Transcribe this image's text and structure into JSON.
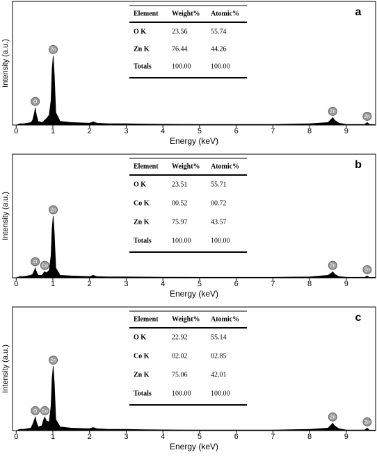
{
  "chart_data": [
    {
      "type": "spectrum",
      "title": "a",
      "x_label": "Energy (keV)",
      "y_label": "Intensity (a.u.)",
      "color": "#000000",
      "xlim": [
        -0.1,
        9.8
      ],
      "xticks": [
        0,
        1,
        2,
        3,
        4,
        5,
        6,
        7,
        8,
        9
      ],
      "ylim": [
        0,
        100
      ],
      "x": [
        0,
        0.1,
        0.2,
        0.3,
        0.4,
        0.45,
        0.5,
        0.52,
        0.55,
        0.6,
        0.7,
        0.75,
        0.78,
        0.82,
        0.9,
        0.95,
        0.98,
        1.01,
        1.04,
        1.08,
        1.2,
        1.5,
        2.0,
        2.1,
        2.2,
        2.5,
        3,
        3.5,
        4,
        5,
        6,
        7,
        8,
        8.5,
        8.6,
        8.63,
        8.68,
        8.8,
        9,
        9.5,
        9.57,
        9.63,
        9.8
      ],
      "values": [
        0,
        1,
        1,
        1.5,
        2,
        4,
        10,
        14,
        8,
        3,
        2,
        3,
        4,
        5,
        8,
        20,
        45,
        56,
        40,
        10,
        3,
        2,
        1.5,
        2.5,
        1.5,
        1,
        1,
        0.8,
        0.6,
        0.5,
        0.5,
        0.5,
        1,
        2,
        5,
        6,
        4,
        1.5,
        0.5,
        0.5,
        2,
        0.5,
        0.3
      ],
      "peak_labels": [
        {
          "text": "O",
          "energy": 0.52
        },
        {
          "text": "Zn",
          "energy": 1.01
        },
        {
          "text": "Zn",
          "energy": 8.63
        },
        {
          "text": "Zn",
          "energy": 9.57
        }
      ],
      "table": {
        "header": [
          "Element",
          "Weight%",
          "Atomic%"
        ],
        "rows": [
          [
            "O K",
            "23.56",
            "55.74"
          ],
          [
            "Zn K",
            "76.44",
            "44.26"
          ],
          [
            "Totals",
            "100.00",
            "100.00"
          ]
        ]
      }
    },
    {
      "type": "spectrum",
      "title": "b",
      "x_label": "Energy (keV)",
      "y_label": "Intensity (a.u.)",
      "color": "#000000",
      "xlim": [
        -0.1,
        9.8
      ],
      "xticks": [
        0,
        1,
        2,
        3,
        4,
        5,
        6,
        7,
        8,
        9
      ],
      "ylim": [
        0,
        100
      ],
      "x": [
        0,
        0.1,
        0.2,
        0.3,
        0.4,
        0.45,
        0.5,
        0.52,
        0.55,
        0.6,
        0.7,
        0.75,
        0.78,
        0.82,
        0.9,
        0.95,
        0.98,
        1.01,
        1.04,
        1.08,
        1.2,
        1.5,
        2.0,
        2.1,
        2.2,
        2.5,
        3,
        3.5,
        4,
        5,
        6,
        7,
        8,
        8.5,
        8.6,
        8.63,
        8.68,
        8.8,
        9,
        9.5,
        9.57,
        9.63,
        9.8
      ],
      "values": [
        0,
        1,
        1,
        1.5,
        2,
        3,
        6,
        8,
        5,
        2,
        2,
        4,
        5,
        4,
        6,
        18,
        40,
        50,
        35,
        8,
        2,
        1.5,
        1,
        2,
        1,
        0.8,
        0.8,
        0.6,
        0.5,
        0.4,
        0.4,
        0.4,
        0.8,
        2,
        4,
        5,
        3,
        1,
        0.4,
        0.4,
        1.5,
        0.4,
        0.3
      ],
      "peak_labels": [
        {
          "text": "O",
          "energy": 0.52
        },
        {
          "text": "Co",
          "energy": 0.78
        },
        {
          "text": "Zn",
          "energy": 1.01
        },
        {
          "text": "Zn",
          "energy": 8.63
        },
        {
          "text": "Zn",
          "energy": 9.57
        }
      ],
      "table": {
        "header": [
          "Element",
          "Weight%",
          "Atomic%"
        ],
        "rows": [
          [
            "O K",
            "23.51",
            "55.71"
          ],
          [
            "Co K",
            "00.52",
            "00.72"
          ],
          [
            "Zn K",
            "75.97",
            "43.57"
          ],
          [
            "Totals",
            "100.00",
            "100.00"
          ]
        ]
      }
    },
    {
      "type": "spectrum",
      "title": "c",
      "x_label": "Energy (keV)",
      "y_label": "Intensity (a.u.)",
      "color": "#000000",
      "xlim": [
        -0.1,
        9.8
      ],
      "xticks": [
        0,
        1,
        2,
        3,
        4,
        5,
        6,
        7,
        8,
        9
      ],
      "ylim": [
        0,
        100
      ],
      "x": [
        0,
        0.1,
        0.2,
        0.3,
        0.4,
        0.45,
        0.5,
        0.52,
        0.55,
        0.6,
        0.7,
        0.75,
        0.78,
        0.82,
        0.9,
        0.95,
        0.98,
        1.01,
        1.04,
        1.08,
        1.2,
        1.5,
        2.0,
        2.1,
        2.2,
        2.5,
        3,
        3.5,
        4,
        5,
        6,
        7,
        8,
        8.5,
        8.6,
        8.63,
        8.68,
        8.8,
        9,
        9.5,
        9.57,
        9.63,
        9.8
      ],
      "values": [
        0,
        1,
        1,
        1.5,
        2,
        5,
        9,
        11,
        7,
        3,
        4,
        9,
        11,
        8,
        7,
        20,
        42,
        52,
        38,
        9,
        3,
        2,
        1.5,
        2.5,
        1.5,
        1,
        1,
        0.8,
        0.6,
        0.5,
        0.5,
        0.5,
        1,
        2,
        5,
        6,
        4,
        1.5,
        0.5,
        0.5,
        2,
        0.5,
        0.3
      ],
      "peak_labels": [
        {
          "text": "O",
          "energy": 0.52
        },
        {
          "text": "Co",
          "energy": 0.78
        },
        {
          "text": "Zn",
          "energy": 1.01
        },
        {
          "text": "Zn",
          "energy": 8.63
        },
        {
          "text": "Zn",
          "energy": 9.57
        }
      ],
      "table": {
        "header": [
          "Element",
          "Weight%",
          "Atomic%"
        ],
        "rows": [
          [
            "O K",
            "22.92",
            "55.14"
          ],
          [
            "Co K",
            "02.02",
            "02.85"
          ],
          [
            "Zn K",
            "75.06",
            "42.01"
          ],
          [
            "Totals",
            "100.00",
            "100.00"
          ]
        ]
      }
    }
  ]
}
